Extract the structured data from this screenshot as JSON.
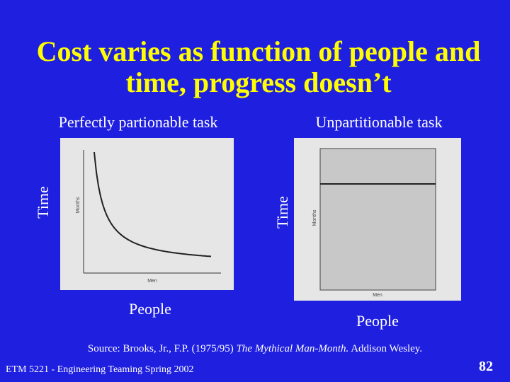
{
  "title": {
    "lines": [
      "Cost varies as function of people and",
      "time, progress doesn’t"
    ]
  },
  "panels": [
    {
      "caption": "Perfectly partionable task",
      "y_label": "Time",
      "x_label": "People",
      "inner_y_label": "Months",
      "inner_x_label": "Men"
    },
    {
      "caption": "Unpartitionable task",
      "y_label": "Time",
      "x_label": "People",
      "inner_y_label": "Months",
      "inner_x_label": "Men"
    }
  ],
  "source": {
    "prefix": "Source: Brooks, Jr., F.P. (1975/95) ",
    "book": "The Mythical Man-Month.",
    "suffix": " Addison Wesley."
  },
  "footer": {
    "course": "ETM 5221 - Engineering Teaming Spring 2002",
    "page": "82"
  }
}
